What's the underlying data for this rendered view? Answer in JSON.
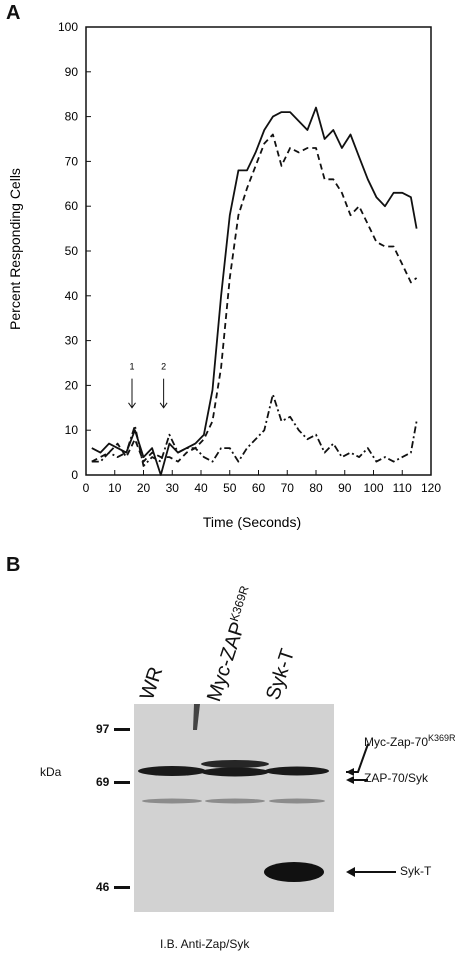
{
  "panel_a": {
    "letter": "A"
  },
  "panel_b": {
    "letter": "B"
  },
  "chart_data": {
    "type": "line",
    "xlabel": "Time (Seconds)",
    "ylabel": "Percent Responding Cells",
    "xlim": [
      0,
      120
    ],
    "ylim": [
      0,
      100
    ],
    "x_ticks": [
      "0",
      "10",
      "20",
      "30",
      "40",
      "50",
      "60",
      "70",
      "80",
      "90",
      "100",
      "110",
      "120"
    ],
    "y_ticks": [
      "0",
      "10",
      "20",
      "30",
      "40",
      "50",
      "60",
      "70",
      "80",
      "90",
      "100"
    ],
    "grid": false,
    "annotations": [
      {
        "label": "1",
        "x": 16
      },
      {
        "label": "2",
        "x": 27
      }
    ],
    "series": [
      {
        "style": "solid",
        "x": [
          2,
          5,
          8,
          11,
          14,
          17,
          20,
          23,
          26,
          29,
          32,
          35,
          38,
          41,
          44,
          47,
          50,
          53,
          56,
          59,
          62,
          65,
          68,
          71,
          74,
          77,
          80,
          83,
          86,
          89,
          92,
          95,
          98,
          101,
          104,
          107,
          110,
          113,
          115
        ],
        "y": [
          6,
          5,
          7,
          6,
          5,
          10,
          4,
          6,
          0,
          7,
          5,
          6,
          7,
          9,
          19,
          40,
          58,
          68,
          68,
          72,
          77,
          80,
          81,
          81,
          79,
          77,
          82,
          75,
          77,
          73,
          76,
          71,
          66,
          62,
          60,
          63,
          63,
          62,
          55
        ]
      },
      {
        "style": "dashed",
        "x": [
          2,
          5,
          8,
          11,
          14,
          17,
          20,
          23,
          26,
          29,
          32,
          35,
          38,
          41,
          44,
          47,
          50,
          53,
          56,
          59,
          62,
          65,
          68,
          71,
          74,
          77,
          80,
          83,
          86,
          89,
          92,
          95,
          98,
          101,
          104,
          107,
          110,
          113,
          115
        ],
        "y": [
          3,
          4,
          5,
          7,
          4,
          8,
          3,
          5,
          4,
          4,
          3,
          5,
          6,
          8,
          12,
          24,
          44,
          58,
          64,
          69,
          74,
          76,
          69,
          73,
          72,
          73,
          73,
          66,
          66,
          63,
          58,
          60,
          56,
          52,
          51,
          51,
          47,
          43,
          44
        ]
      },
      {
        "style": "dash-dot",
        "x": [
          2,
          5,
          8,
          11,
          14,
          17,
          20,
          23,
          26,
          29,
          32,
          35,
          38,
          41,
          44,
          47,
          50,
          53,
          56,
          59,
          62,
          65,
          68,
          71,
          74,
          77,
          80,
          83,
          86,
          89,
          92,
          95,
          98,
          101,
          104,
          107,
          110,
          113,
          115
        ],
        "y": [
          3,
          3,
          5,
          4,
          5,
          11,
          2,
          4,
          3,
          9,
          5,
          6,
          6,
          4,
          3,
          6,
          6,
          3,
          6,
          8,
          10,
          18,
          12,
          13,
          10,
          8,
          9,
          5,
          7,
          4,
          5,
          4,
          6,
          3,
          4,
          3,
          4,
          5,
          12
        ]
      }
    ]
  },
  "blot": {
    "lanes": [
      "WR",
      "Myc-ZAP",
      "Syk-T"
    ],
    "lane_sup": [
      "",
      "K369R",
      ""
    ],
    "markers": [
      "97",
      "69",
      "46"
    ],
    "unit": "kDa",
    "labels": [
      {
        "text": "Myc-Zap-70",
        "sup": "K369R"
      },
      {
        "text": "ZAP-70/Syk",
        "sup": ""
      },
      {
        "text": "Syk-T",
        "sup": ""
      }
    ],
    "caption": "I.B. Anti-Zap/Syk"
  }
}
